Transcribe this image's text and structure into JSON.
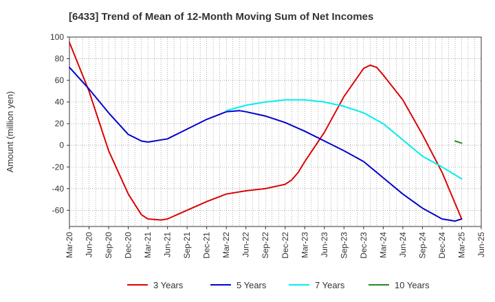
{
  "chart_data": {
    "type": "line",
    "title": "[6433]  Trend of Mean of 12-Month Moving Sum of Net Incomes",
    "ylabel": "Amount (million yen)",
    "xlabel": "",
    "ylim": [
      -75,
      100
    ],
    "yticks": [
      100,
      80,
      60,
      40,
      20,
      0,
      -20,
      -40,
      -60
    ],
    "x_tick_labels": [
      "Mar-20",
      "Jun-20",
      "Sep-20",
      "Dec-20",
      "Mar-21",
      "Jun-21",
      "Sep-21",
      "Dec-21",
      "Mar-22",
      "Jun-22",
      "Sep-22",
      "Dec-22",
      "Mar-23",
      "Jun-23",
      "Sep-23",
      "Dec-23",
      "Mar-24",
      "Jun-24",
      "Sep-24",
      "Dec-24",
      "Mar-25",
      "Jun-25"
    ],
    "grid": true,
    "legend_position": "bottom",
    "series": [
      {
        "name": "3 Years",
        "color": "#dd0000",
        "points": [
          [
            "Mar-20",
            95
          ],
          [
            "Jun-20",
            50
          ],
          [
            "Sep-20",
            -5
          ],
          [
            "Dec-20",
            -45
          ],
          [
            "Feb-21",
            -64
          ],
          [
            "Mar-21",
            -68
          ],
          [
            "May-21",
            -69
          ],
          [
            "Jun-21",
            -68
          ],
          [
            "Sep-21",
            -60
          ],
          [
            "Dec-21",
            -52
          ],
          [
            "Mar-22",
            -45
          ],
          [
            "Jun-22",
            -42
          ],
          [
            "Sep-22",
            -40
          ],
          [
            "Dec-22",
            -36
          ],
          [
            "Jan-23",
            -32
          ],
          [
            "Feb-23",
            -25
          ],
          [
            "Mar-23",
            -15
          ],
          [
            "Jun-23",
            12
          ],
          [
            "Sep-23",
            45
          ],
          [
            "Dec-23",
            71
          ],
          [
            "Jan-24",
            74
          ],
          [
            "Feb-24",
            72
          ],
          [
            "Mar-24",
            65
          ],
          [
            "Jun-24",
            42
          ],
          [
            "Sep-24",
            10
          ],
          [
            "Dec-24",
            -25
          ],
          [
            "Mar-25",
            -68
          ]
        ]
      },
      {
        "name": "5 Years",
        "color": "#0000cc",
        "points": [
          [
            "Mar-20",
            72
          ],
          [
            "Jun-20",
            52
          ],
          [
            "Sep-20",
            30
          ],
          [
            "Dec-20",
            10
          ],
          [
            "Feb-21",
            4
          ],
          [
            "Mar-21",
            3
          ],
          [
            "Jun-21",
            6
          ],
          [
            "Sep-21",
            15
          ],
          [
            "Dec-21",
            24
          ],
          [
            "Mar-22",
            31
          ],
          [
            "May-22",
            32
          ],
          [
            "Jun-22",
            31
          ],
          [
            "Sep-22",
            27
          ],
          [
            "Dec-22",
            21
          ],
          [
            "Mar-23",
            13
          ],
          [
            "Jun-23",
            4
          ],
          [
            "Sep-23",
            -5
          ],
          [
            "Dec-23",
            -15
          ],
          [
            "Mar-24",
            -30
          ],
          [
            "Jun-24",
            -45
          ],
          [
            "Sep-24",
            -58
          ],
          [
            "Dec-24",
            -68
          ],
          [
            "Feb-25",
            -70
          ],
          [
            "Mar-25",
            -68
          ]
        ]
      },
      {
        "name": "7 Years",
        "color": "#00eeee",
        "points": [
          [
            "Mar-22",
            32
          ],
          [
            "Jun-22",
            37
          ],
          [
            "Sep-22",
            40
          ],
          [
            "Dec-22",
            42
          ],
          [
            "Mar-23",
            42
          ],
          [
            "Jun-23",
            40
          ],
          [
            "Sep-23",
            36
          ],
          [
            "Dec-23",
            30
          ],
          [
            "Mar-24",
            20
          ],
          [
            "Jun-24",
            5
          ],
          [
            "Sep-24",
            -10
          ],
          [
            "Dec-24",
            -20
          ],
          [
            "Mar-25",
            -31
          ]
        ]
      },
      {
        "name": "10 Years",
        "color": "#228822",
        "points": [
          [
            "Feb-25",
            4
          ],
          [
            "Mar-25",
            2
          ]
        ]
      }
    ]
  }
}
